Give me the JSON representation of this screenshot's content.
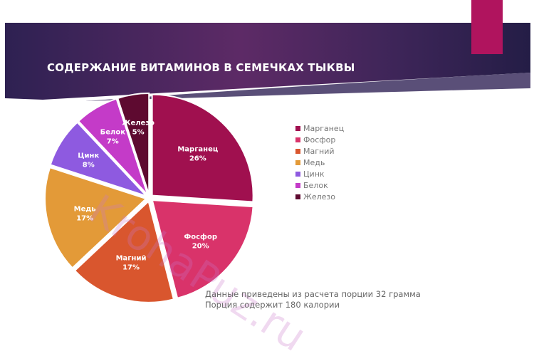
{
  "slide": {
    "title": "СОДЕРЖАНИЕ ВИТАМИНОВ В СЕМЕЧКАХ ТЫКВЫ",
    "note_line1": "Данные приведены из расчета порции 32 грамма",
    "note_line2": "Порция содержит 180 калории",
    "watermark": "KrohaPuz.ru",
    "colors": {
      "band_dark": "#2b2050",
      "band_mid": "#5a2a65",
      "accent_rect": "#b0145e"
    }
  },
  "legend": {
    "items": [
      {
        "label": "Марганец",
        "color": "#a0104f"
      },
      {
        "label": "Фосфор",
        "color": "#d9336a"
      },
      {
        "label": "Магний",
        "color": "#d9562e"
      },
      {
        "label": "Медь",
        "color": "#e39a38"
      },
      {
        "label": "Цинк",
        "color": "#8e5ae0"
      },
      {
        "label": "Белок",
        "color": "#c43bc8"
      },
      {
        "label": "Железо",
        "color": "#5e0a30"
      }
    ]
  },
  "chart_data": {
    "type": "pie",
    "title": "СОДЕРЖАНИЕ ВИТАМИНОВ В СЕМЕЧКАХ ТЫКВЫ",
    "categories": [
      "Марганец",
      "Фосфор",
      "Магний",
      "Медь",
      "Цинк",
      "Белок",
      "Железо"
    ],
    "values": [
      26,
      20,
      17,
      17,
      8,
      7,
      5
    ],
    "labels": [
      "26%",
      "20%",
      "17%",
      "17%",
      "8%",
      "7%",
      "5%"
    ],
    "colors": [
      "#a0104f",
      "#d9336a",
      "#d9562e",
      "#e39a38",
      "#8e5ae0",
      "#c43bc8",
      "#5e0a30"
    ],
    "legend_position": "right",
    "exploded": true
  }
}
